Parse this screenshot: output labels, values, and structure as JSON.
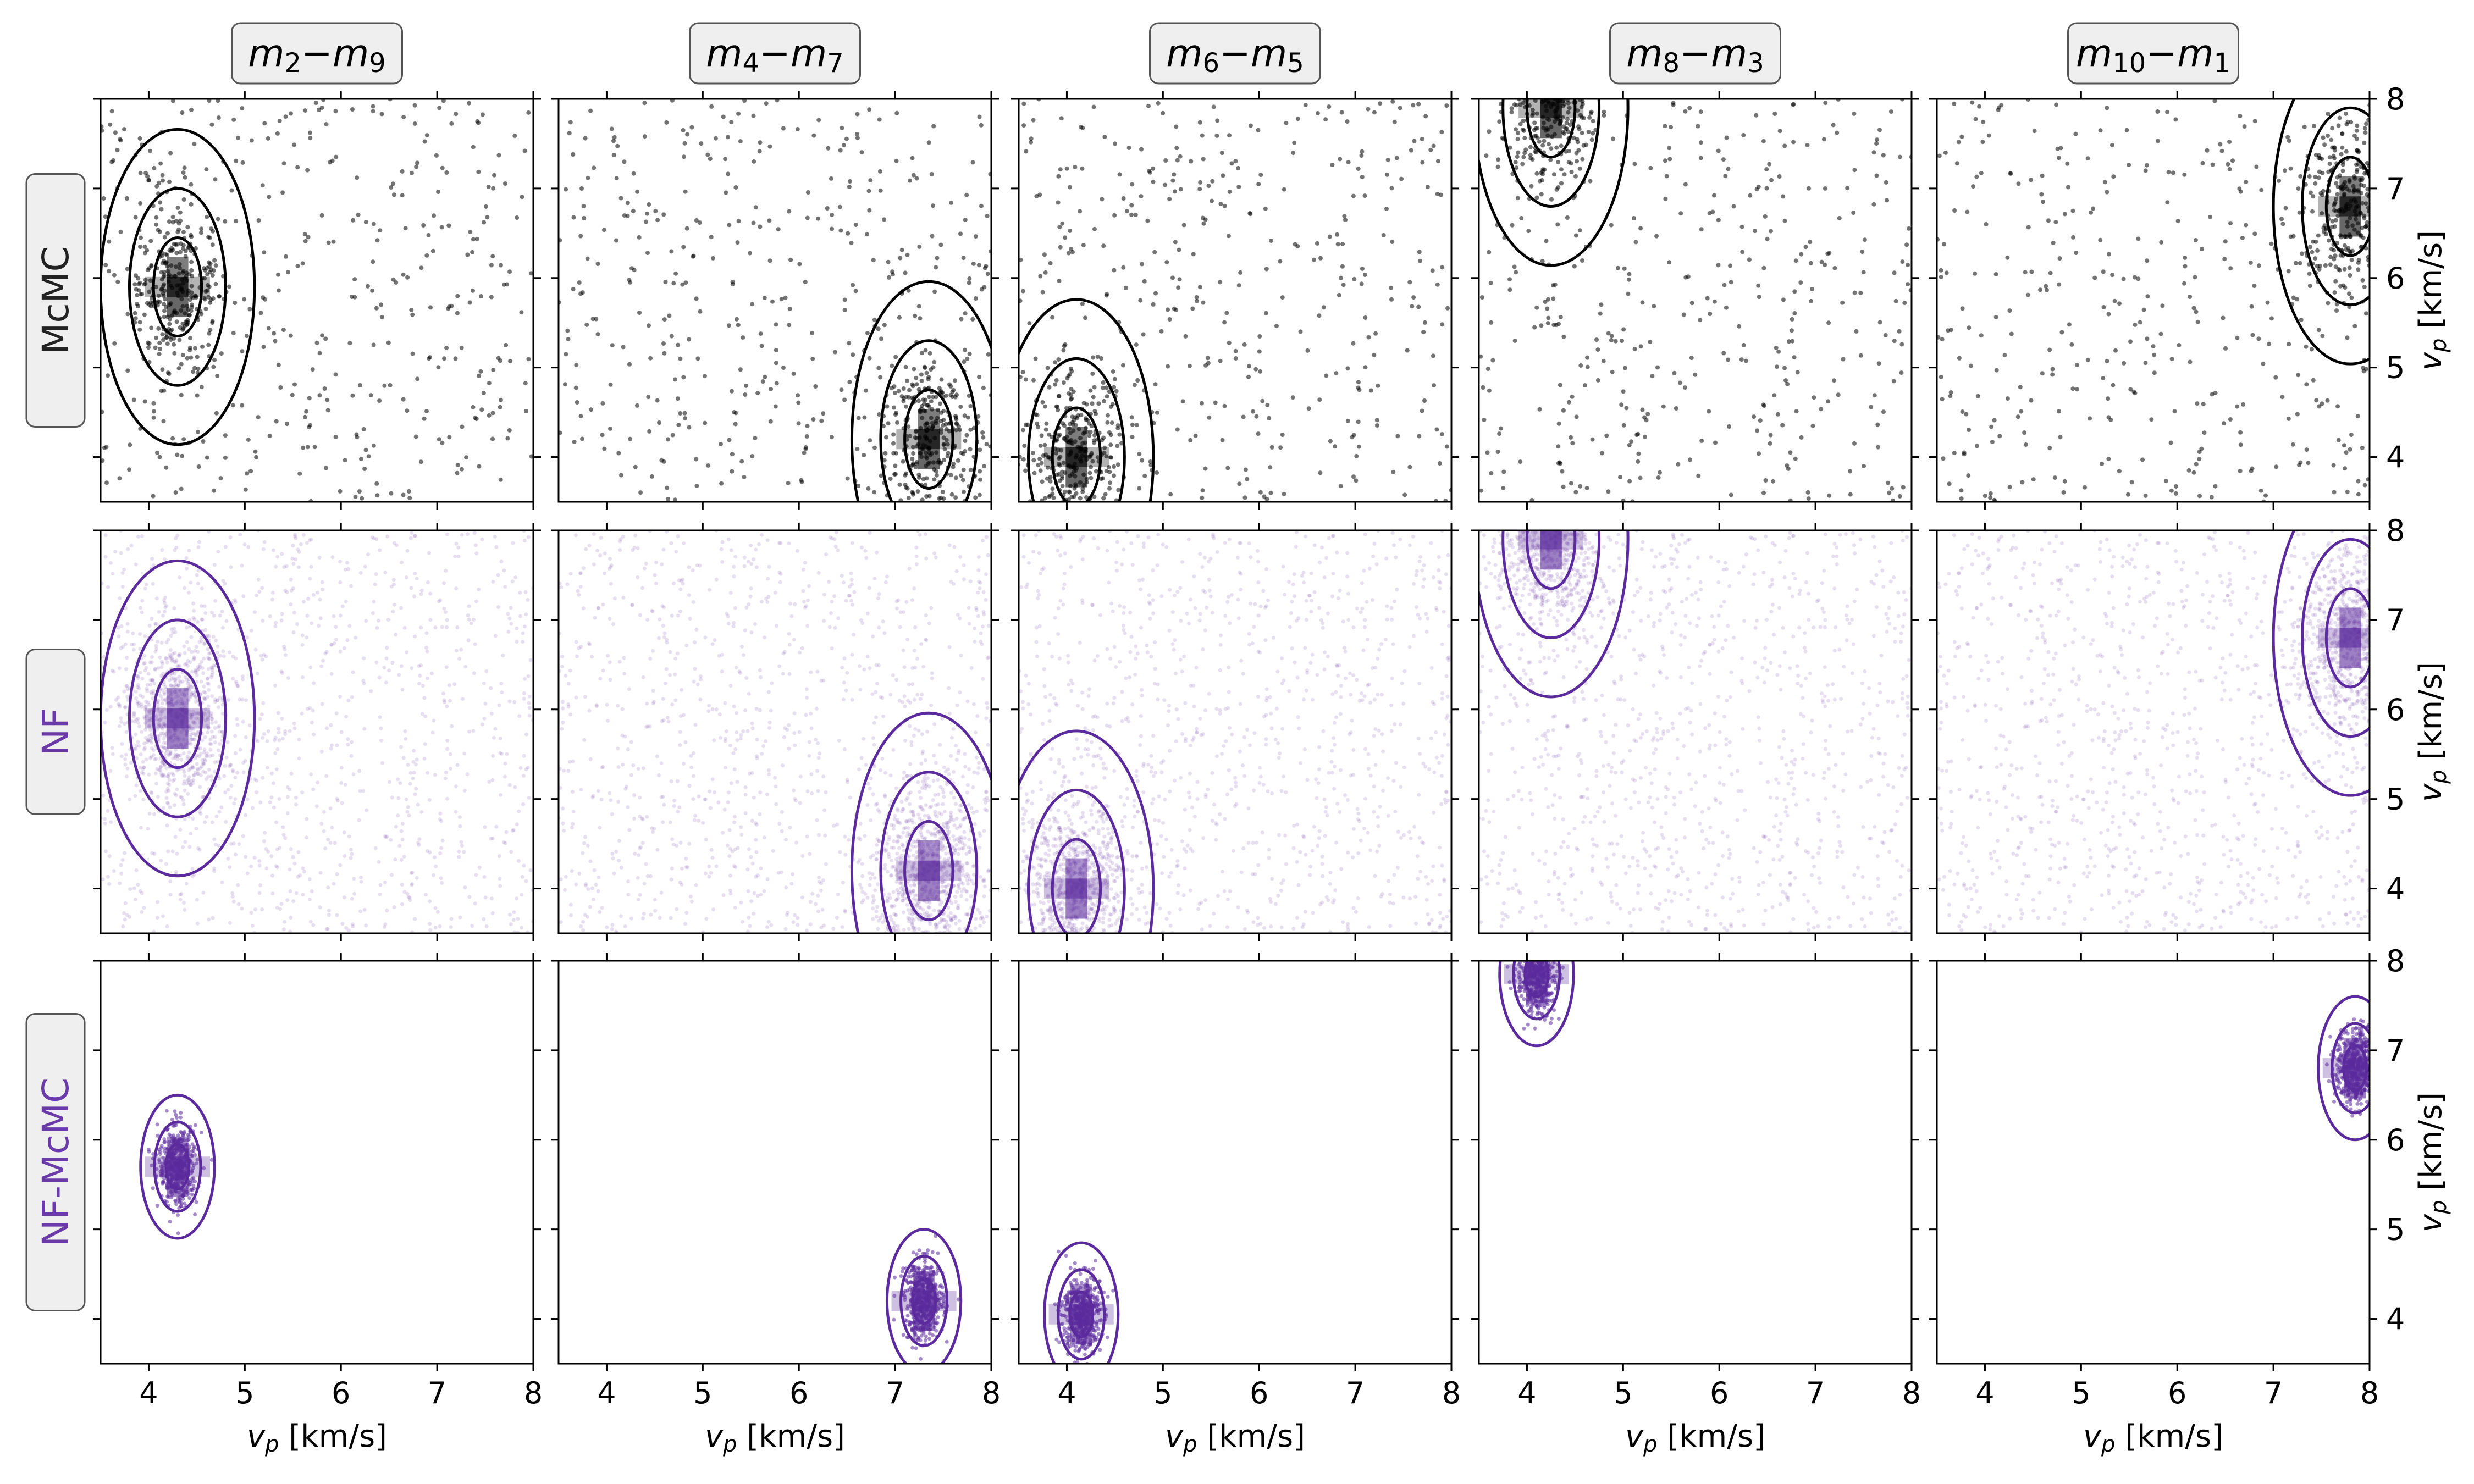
{
  "columns": [
    {
      "title": {
        "main": "m",
        "s1": "2",
        "dash": "−",
        "main2": "m",
        "s2": "9"
      },
      "mode": [
        4.3,
        5.9
      ]
    },
    {
      "title": {
        "main": "m",
        "s1": "4",
        "dash": "−",
        "main2": "m",
        "s2": "7"
      },
      "mode": [
        7.35,
        4.2
      ]
    },
    {
      "title": {
        "main": "m",
        "s1": "6",
        "dash": "−",
        "main2": "m",
        "s2": "5"
      },
      "mode": [
        4.1,
        4.0
      ]
    },
    {
      "title": {
        "main": "m",
        "s1": "8",
        "dash": "−",
        "main2": "m",
        "s2": "3"
      },
      "mode": [
        4.25,
        7.9
      ]
    },
    {
      "title": {
        "main": "m",
        "s1": "10",
        "dash": "−",
        "main2": "m",
        "s2": "1"
      },
      "mode": [
        7.8,
        6.8
      ]
    }
  ],
  "rows": [
    {
      "label": "McMC",
      "color": "#000000",
      "label_color": "#222222"
    },
    {
      "label": "NF",
      "color": "#5b2a9c",
      "label_color": "#6a3aa8"
    },
    {
      "label": "NF-McMC",
      "color": "#5b2a9c",
      "label_color": "#6a3aa8"
    }
  ],
  "axes": {
    "xlabel": {
      "v": "v",
      "sub": "p",
      "unit": " [km/s]"
    },
    "ylabel": {
      "v": "v",
      "sub": "p",
      "unit": " [km/s]"
    },
    "x_ticks": [
      "4",
      "5",
      "6",
      "7",
      "8"
    ],
    "y_ticks": [
      "4",
      "5",
      "6",
      "7",
      "8"
    ]
  },
  "chart_data": {
    "type": "scatter",
    "description_grid": "3 rows x 5 columns of 2D posterior density panels",
    "x_range": [
      3.5,
      8.0
    ],
    "y_range": [
      3.5,
      8.0
    ],
    "x_ticks": [
      4,
      5,
      6,
      7,
      8
    ],
    "y_ticks": [
      4,
      5,
      6,
      7,
      8
    ],
    "panels": [
      {
        "row": "McMC",
        "col": "m2-m9",
        "mode": [
          4.3,
          5.9
        ],
        "spread": "broad"
      },
      {
        "row": "McMC",
        "col": "m4-m7",
        "mode": [
          7.35,
          4.2
        ],
        "spread": "broad"
      },
      {
        "row": "McMC",
        "col": "m6-m5",
        "mode": [
          4.1,
          4.0
        ],
        "spread": "broad"
      },
      {
        "row": "McMC",
        "col": "m8-m3",
        "mode": [
          4.25,
          7.9
        ],
        "spread": "broad"
      },
      {
        "row": "McMC",
        "col": "m10-m1",
        "mode": [
          7.8,
          6.8
        ],
        "spread": "broad"
      },
      {
        "row": "NF",
        "col": "m2-m9",
        "mode": [
          4.3,
          5.9
        ],
        "spread": "broad"
      },
      {
        "row": "NF",
        "col": "m4-m7",
        "mode": [
          7.35,
          4.2
        ],
        "spread": "broad"
      },
      {
        "row": "NF",
        "col": "m6-m5",
        "mode": [
          4.1,
          4.0
        ],
        "spread": "broad"
      },
      {
        "row": "NF",
        "col": "m8-m3",
        "mode": [
          4.25,
          7.9
        ],
        "spread": "broad"
      },
      {
        "row": "NF",
        "col": "m10-m1",
        "mode": [
          7.8,
          6.8
        ],
        "spread": "broad"
      },
      {
        "row": "NF-McMC",
        "col": "m2-m9",
        "mode": [
          4.3,
          5.7
        ],
        "spread": "tight"
      },
      {
        "row": "NF-McMC",
        "col": "m4-m7",
        "mode": [
          7.3,
          4.2
        ],
        "spread": "tight"
      },
      {
        "row": "NF-McMC",
        "col": "m6-m5",
        "mode": [
          4.15,
          4.05
        ],
        "spread": "tight"
      },
      {
        "row": "NF-McMC",
        "col": "m8-m3",
        "mode": [
          4.1,
          7.85
        ],
        "spread": "tight"
      },
      {
        "row": "NF-McMC",
        "col": "m10-m1",
        "mode": [
          7.85,
          6.8
        ],
        "spread": "tight"
      }
    ]
  }
}
